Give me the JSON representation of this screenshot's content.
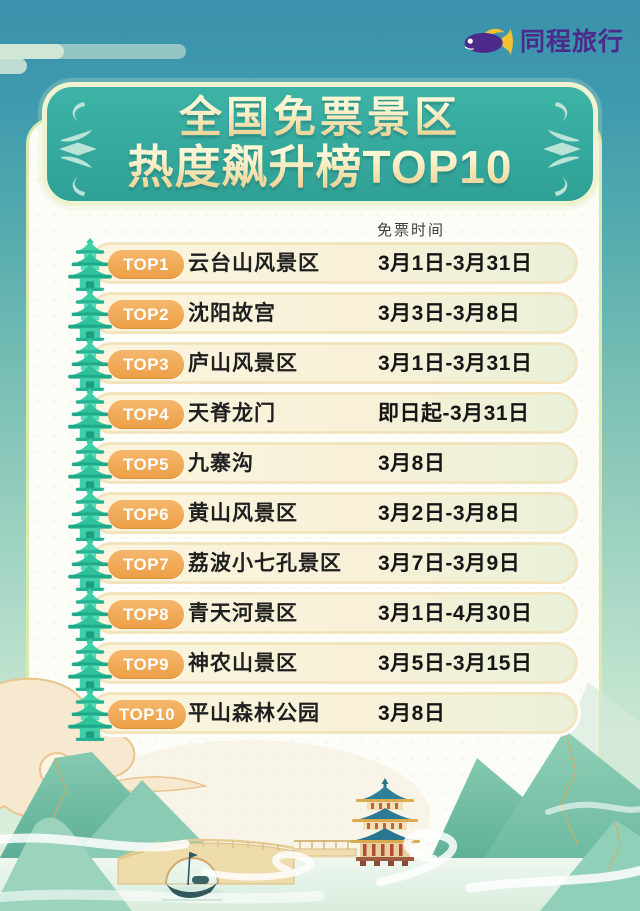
{
  "brand": {
    "name": "同程旅行",
    "logo_icon": "tongcheng-fish-logo",
    "purple": "#4b2a8a",
    "yellow": "#f2c235"
  },
  "title": {
    "line1": "全国免票景区",
    "line2": "热度飙升榜TOP10"
  },
  "list": {
    "date_column_header": "免票时间",
    "row_icon": "pagoda-icon",
    "rows": [
      {
        "rank": "TOP1",
        "name": "云台山风景区",
        "free_period": "3月1日-3月31日"
      },
      {
        "rank": "TOP2",
        "name": "沈阳故宫",
        "free_period": "3月3日-3月8日"
      },
      {
        "rank": "TOP3",
        "name": "庐山风景区",
        "free_period": "3月1日-3月31日"
      },
      {
        "rank": "TOP4",
        "name": "天脊龙门",
        "free_period": "即日起-3月31日"
      },
      {
        "rank": "TOP5",
        "name": "九寨沟",
        "free_period": "3月8日"
      },
      {
        "rank": "TOP6",
        "name": "黄山风景区",
        "free_period": "3月2日-3月8日"
      },
      {
        "rank": "TOP7",
        "name": "荔波小七孔景区",
        "free_period": "3月7日-3月9日"
      },
      {
        "rank": "TOP8",
        "name": "青天河景区",
        "free_period": "3月1日-4月30日"
      },
      {
        "rank": "TOP9",
        "name": "神农山景区",
        "free_period": "3月5日-3月15日"
      },
      {
        "rank": "TOP10",
        "name": "平山森林公园",
        "free_period": "3月8日"
      }
    ]
  },
  "chart_data": {
    "type": "table",
    "title": "全国免票景区 热度飙升榜TOP10",
    "columns": [
      "rank",
      "scenic_area",
      "免票时间"
    ],
    "rows": [
      [
        "TOP1",
        "云台山风景区",
        "3月1日-3月31日"
      ],
      [
        "TOP2",
        "沈阳故宫",
        "3月3日-3月8日"
      ],
      [
        "TOP3",
        "庐山风景区",
        "3月1日-3月31日"
      ],
      [
        "TOP4",
        "天脊龙门",
        "即日起-3月31日"
      ],
      [
        "TOP5",
        "九寨沟",
        "3月8日"
      ],
      [
        "TOP6",
        "黄山风景区",
        "3月2日-3月8日"
      ],
      [
        "TOP7",
        "荔波小七孔景区",
        "3月7日-3月9日"
      ],
      [
        "TOP8",
        "青天河景区",
        "3月1日-4月30日"
      ],
      [
        "TOP9",
        "神农山景区",
        "3月5日-3月15日"
      ],
      [
        "TOP10",
        "平山森林公园",
        "3月8日"
      ]
    ]
  },
  "colors": {
    "background_top": "#3a91ac",
    "banner_fill": "#35aaa0",
    "banner_border": "#f0f3cf",
    "title_text": "#f7ecc0",
    "card_bg": "#fdfdf8",
    "row_fill": "#f9f2d9",
    "row_border": "#f2e5bd",
    "badge_orange": "#ee a_unused",
    "badge_gradient_top": "#f5b76c",
    "badge_gradient_bottom": "#ec9f45",
    "pagoda_green": "#2fc29d",
    "mountain_green": "#7cc3aa",
    "cloud_peach": "#f7e9cf",
    "temple_roof": "#2e7d96"
  },
  "scene": {
    "elements": [
      "peach-cloud",
      "green-mountains",
      "arch-bridge",
      "temple-pagoda",
      "fishing-boat",
      "water-mist"
    ]
  }
}
